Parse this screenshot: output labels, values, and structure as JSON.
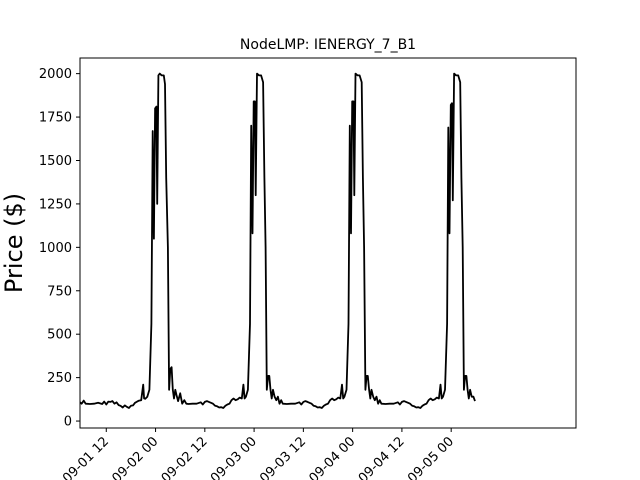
{
  "chart_data": {
    "type": "line",
    "title": "NodeLMP: IENERGY_7_B1",
    "xlabel": "",
    "ylabel": "Price ($)",
    "ylim": [
      -40,
      2090
    ],
    "yticks": [
      0,
      250,
      500,
      750,
      1000,
      1250,
      1500,
      1750,
      2000
    ],
    "x_unit": "hours since 09-01 00",
    "xlim": [
      5.6,
      126.4
    ],
    "xticks": [
      {
        "label": "09-01 12",
        "hour": 12
      },
      {
        "label": "09-02 00",
        "hour": 24
      },
      {
        "label": "09-02 12",
        "hour": 36
      },
      {
        "label": "09-03 00",
        "hour": 48
      },
      {
        "label": "09-03 12",
        "hour": 60
      },
      {
        "label": "09-04 00",
        "hour": 72
      },
      {
        "label": "09-04 12",
        "hour": 84
      },
      {
        "label": "09-05 00",
        "hour": 96
      }
    ],
    "grid": false,
    "series": [
      {
        "name": "",
        "color": "#000000",
        "points": [
          [
            5.0,
            115
          ],
          [
            5.5,
            110
          ],
          [
            6.0,
            100
          ],
          [
            6.5,
            118
          ],
          [
            7.0,
            100
          ],
          [
            8.0,
            98
          ],
          [
            9.0,
            100
          ],
          [
            10.0,
            105
          ],
          [
            11.0,
            98
          ],
          [
            11.5,
            112
          ],
          [
            12.0,
            95
          ],
          [
            12.5,
            112
          ],
          [
            13.0,
            110
          ],
          [
            13.5,
            115
          ],
          [
            14.0,
            100
          ],
          [
            14.5,
            108
          ],
          [
            15.0,
            92
          ],
          [
            15.5,
            88
          ],
          [
            16.0,
            78
          ],
          [
            16.5,
            90
          ],
          [
            17.0,
            82
          ],
          [
            17.5,
            75
          ],
          [
            18.0,
            88
          ],
          [
            18.5,
            90
          ],
          [
            19.0,
            105
          ],
          [
            19.5,
            112
          ],
          [
            20.0,
            118
          ],
          [
            20.5,
            120
          ],
          [
            21.0,
            210
          ],
          [
            21.2,
            130
          ],
          [
            21.5,
            128
          ],
          [
            22.0,
            140
          ],
          [
            22.5,
            180
          ],
          [
            23.0,
            560
          ],
          [
            23.3,
            1670
          ],
          [
            23.6,
            1050
          ],
          [
            23.9,
            1800
          ],
          [
            24.2,
            1810
          ],
          [
            24.4,
            1250
          ],
          [
            24.7,
            1990
          ],
          [
            25.0,
            2000
          ],
          [
            25.5,
            1990
          ],
          [
            26.0,
            1990
          ],
          [
            26.3,
            1940
          ],
          [
            26.6,
            1400
          ],
          [
            27.0,
            1000
          ],
          [
            27.3,
            180
          ],
          [
            27.6,
            300
          ],
          [
            27.9,
            310
          ],
          [
            28.2,
            180
          ],
          [
            28.5,
            130
          ],
          [
            28.8,
            180
          ],
          [
            29.1,
            150
          ],
          [
            29.5,
            115
          ],
          [
            30.0,
            160
          ],
          [
            30.5,
            100
          ],
          [
            31.0,
            120
          ],
          [
            31.5,
            100
          ],
          [
            32.0,
            98
          ],
          [
            33.0,
            100
          ],
          [
            34.0,
            100
          ],
          [
            35.0,
            108
          ],
          [
            35.5,
            95
          ],
          [
            36.0,
            110
          ],
          [
            36.5,
            115
          ],
          [
            37.0,
            110
          ],
          [
            37.5,
            105
          ],
          [
            38.0,
            100
          ],
          [
            38.5,
            88
          ],
          [
            39.0,
            85
          ],
          [
            39.5,
            78
          ],
          [
            40.0,
            80
          ],
          [
            40.5,
            75
          ],
          [
            41.0,
            88
          ],
          [
            41.5,
            95
          ],
          [
            42.0,
            100
          ],
          [
            42.5,
            120
          ],
          [
            43.0,
            130
          ],
          [
            43.5,
            120
          ],
          [
            44.0,
            125
          ],
          [
            44.5,
            135
          ],
          [
            45.0,
            130
          ],
          [
            45.4,
            210
          ],
          [
            45.7,
            130
          ],
          [
            46.0,
            140
          ],
          [
            46.5,
            180
          ],
          [
            47.0,
            560
          ],
          [
            47.3,
            1700
          ],
          [
            47.6,
            1080
          ],
          [
            47.9,
            1840
          ],
          [
            48.2,
            1840
          ],
          [
            48.4,
            1300
          ],
          [
            48.7,
            2000
          ],
          [
            49.2,
            1990
          ],
          [
            49.7,
            1990
          ],
          [
            50.2,
            1950
          ],
          [
            50.5,
            1400
          ],
          [
            50.8,
            1000
          ],
          [
            51.1,
            180
          ],
          [
            51.4,
            260
          ],
          [
            51.7,
            260
          ],
          [
            52.0,
            180
          ],
          [
            52.3,
            130
          ],
          [
            52.6,
            180
          ],
          [
            53.0,
            140
          ],
          [
            53.4,
            120
          ],
          [
            53.8,
            140
          ],
          [
            54.2,
            100
          ],
          [
            54.6,
            120
          ],
          [
            55.0,
            100
          ],
          [
            56.0,
            98
          ],
          [
            57.0,
            100
          ],
          [
            58.0,
            100
          ],
          [
            59.0,
            108
          ],
          [
            59.5,
            95
          ],
          [
            60.0,
            110
          ],
          [
            60.5,
            115
          ],
          [
            61.0,
            110
          ],
          [
            61.5,
            105
          ],
          [
            62.0,
            100
          ],
          [
            62.5,
            88
          ],
          [
            63.0,
            85
          ],
          [
            63.5,
            78
          ],
          [
            64.0,
            80
          ],
          [
            64.5,
            75
          ],
          [
            65.0,
            88
          ],
          [
            65.5,
            95
          ],
          [
            66.0,
            100
          ],
          [
            66.5,
            120
          ],
          [
            67.0,
            130
          ],
          [
            67.5,
            120
          ],
          [
            68.0,
            125
          ],
          [
            68.5,
            135
          ],
          [
            69.0,
            130
          ],
          [
            69.4,
            210
          ],
          [
            69.7,
            130
          ],
          [
            70.0,
            140
          ],
          [
            70.5,
            180
          ],
          [
            71.0,
            560
          ],
          [
            71.3,
            1700
          ],
          [
            71.6,
            1080
          ],
          [
            71.9,
            1840
          ],
          [
            72.2,
            1840
          ],
          [
            72.4,
            1300
          ],
          [
            72.7,
            2000
          ],
          [
            73.2,
            1990
          ],
          [
            73.7,
            1990
          ],
          [
            74.2,
            1950
          ],
          [
            74.5,
            1400
          ],
          [
            74.8,
            1000
          ],
          [
            75.1,
            180
          ],
          [
            75.4,
            260
          ],
          [
            75.7,
            260
          ],
          [
            76.0,
            180
          ],
          [
            76.3,
            130
          ],
          [
            76.6,
            180
          ],
          [
            77.0,
            140
          ],
          [
            77.4,
            120
          ],
          [
            77.8,
            140
          ],
          [
            78.2,
            100
          ],
          [
            78.6,
            120
          ],
          [
            79.0,
            100
          ],
          [
            80.0,
            98
          ],
          [
            81.0,
            100
          ],
          [
            82.0,
            100
          ],
          [
            83.0,
            108
          ],
          [
            83.5,
            95
          ],
          [
            84.0,
            110
          ],
          [
            84.5,
            115
          ],
          [
            85.0,
            110
          ],
          [
            85.5,
            105
          ],
          [
            86.0,
            100
          ],
          [
            86.5,
            88
          ],
          [
            87.0,
            85
          ],
          [
            87.5,
            78
          ],
          [
            88.0,
            80
          ],
          [
            88.5,
            75
          ],
          [
            89.0,
            88
          ],
          [
            89.5,
            95
          ],
          [
            90.0,
            100
          ],
          [
            90.5,
            120
          ],
          [
            91.0,
            130
          ],
          [
            91.5,
            120
          ],
          [
            92.0,
            125
          ],
          [
            92.5,
            135
          ],
          [
            93.0,
            130
          ],
          [
            93.4,
            210
          ],
          [
            93.7,
            130
          ],
          [
            94.0,
            140
          ],
          [
            94.5,
            180
          ],
          [
            95.0,
            560
          ],
          [
            95.3,
            1690
          ],
          [
            95.6,
            1080
          ],
          [
            95.9,
            1820
          ],
          [
            96.2,
            1830
          ],
          [
            96.4,
            1270
          ],
          [
            96.7,
            2000
          ],
          [
            97.2,
            1990
          ],
          [
            97.7,
            1990
          ],
          [
            98.2,
            1950
          ],
          [
            98.5,
            1400
          ],
          [
            98.8,
            1000
          ],
          [
            99.1,
            180
          ],
          [
            99.4,
            260
          ],
          [
            99.7,
            260
          ],
          [
            100.0,
            180
          ],
          [
            100.3,
            130
          ],
          [
            100.6,
            180
          ],
          [
            101.0,
            140
          ],
          [
            101.4,
            140
          ],
          [
            101.8,
            115
          ]
        ]
      }
    ]
  }
}
